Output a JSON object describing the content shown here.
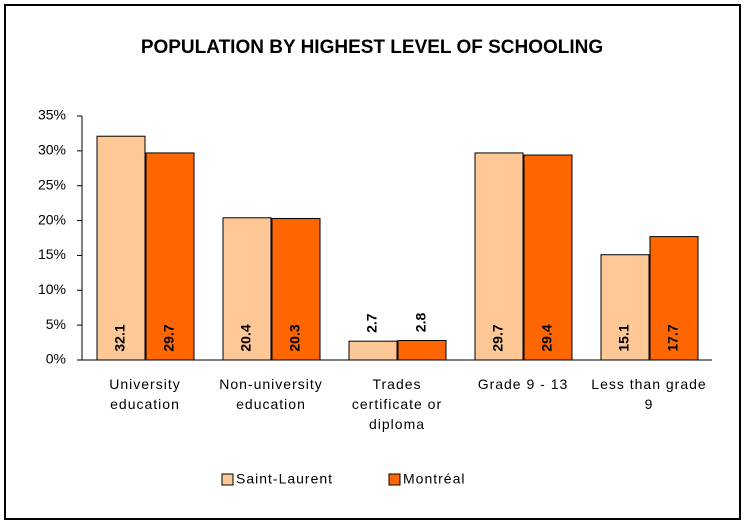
{
  "chart_data": {
    "type": "bar",
    "title": "POPULATION BY HIGHEST LEVEL OF SCHOOLING",
    "categories": [
      "University education",
      "Non-university education",
      "Trades certificate or diploma",
      "Grade 9 - 13",
      "Less than grade 9"
    ],
    "series": [
      {
        "name": "Saint-Laurent",
        "color": "#fdc896",
        "values": [
          32.1,
          20.4,
          2.7,
          29.7,
          15.1
        ]
      },
      {
        "name": "Montréal",
        "color": "#ff6600",
        "values": [
          29.7,
          20.3,
          2.8,
          29.4,
          17.7
        ]
      }
    ],
    "ylim": [
      0,
      35
    ],
    "yticks": [
      {
        "value": 0,
        "label": "0%"
      },
      {
        "value": 5,
        "label": "5%"
      },
      {
        "value": 10,
        "label": "10%"
      },
      {
        "value": 15,
        "label": "15%"
      },
      {
        "value": 20,
        "label": "20%"
      },
      {
        "value": 25,
        "label": "25%"
      },
      {
        "value": 30,
        "label": "30%"
      },
      {
        "value": 35,
        "label": "35%"
      }
    ]
  }
}
